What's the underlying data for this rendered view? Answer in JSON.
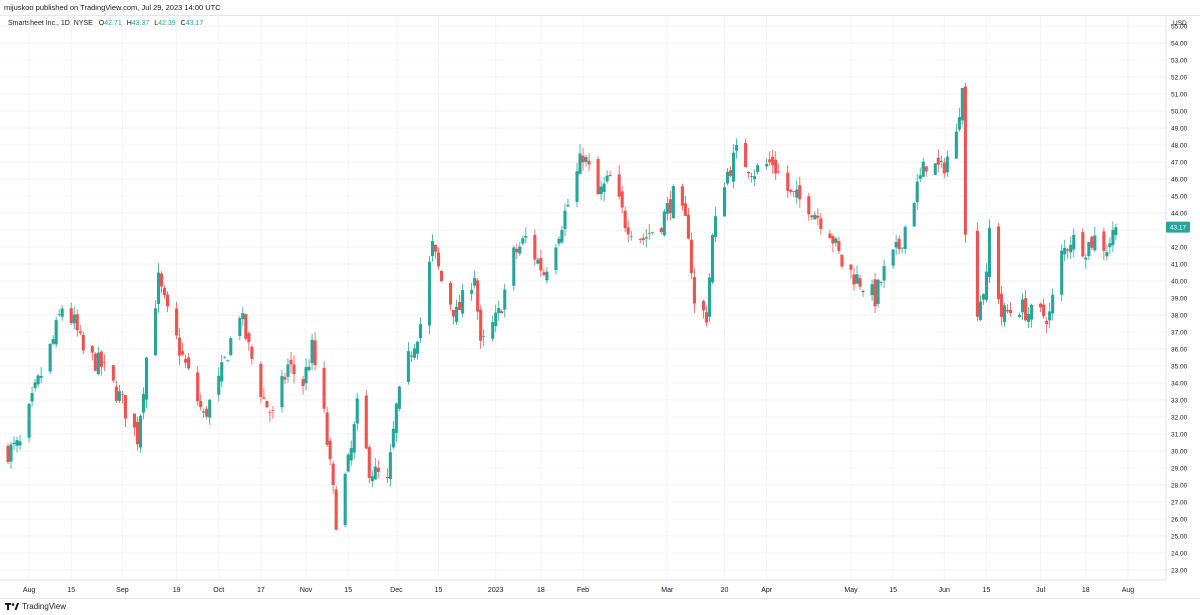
{
  "header": {
    "publisher": "mijuskoo published on TradingView.com, Jul 29, 2023 14:00 UTC"
  },
  "legend": {
    "symbol": "Smartsheet Inc., 1D, NYSE",
    "open_label": "O",
    "open": "42.71",
    "high_label": "H",
    "high": "43.37",
    "low_label": "L",
    "low": "42.39",
    "close_label": "C",
    "close": "43.17"
  },
  "footer": {
    "brand": "TradingView"
  },
  "colors": {
    "up": "#26a69a",
    "down": "#ef5350",
    "grid": "#f2f3f5",
    "text": "#131722"
  },
  "chart_data": {
    "type": "candlestick",
    "ylabel": "USD",
    "ylim": [
      22.4,
      55.6
    ],
    "y_ticks": [
      23,
      24,
      25,
      26,
      27,
      28,
      29,
      30,
      31,
      32,
      33,
      34,
      35,
      36,
      37,
      38,
      39,
      40,
      41,
      42,
      43,
      44,
      45,
      46,
      47,
      48,
      49,
      50,
      51,
      52,
      53,
      54,
      55
    ],
    "last_price": "43.17",
    "x_ticks": [
      {
        "label": "Aug",
        "date": "2022-08-01"
      },
      {
        "label": "15",
        "date": "2022-08-15"
      },
      {
        "label": "Sep",
        "date": "2022-09-01"
      },
      {
        "label": "19",
        "date": "2022-09-19"
      },
      {
        "label": "Oct",
        "date": "2022-10-03"
      },
      {
        "label": "17",
        "date": "2022-10-17"
      },
      {
        "label": "Nov",
        "date": "2022-11-01"
      },
      {
        "label": "15",
        "date": "2022-11-15"
      },
      {
        "label": "Dec",
        "date": "2022-12-01"
      },
      {
        "label": "15",
        "date": "2022-12-15"
      },
      {
        "label": "2023",
        "date": "2023-01-03"
      },
      {
        "label": "18",
        "date": "2023-01-18"
      },
      {
        "label": "Feb",
        "date": "2023-02-01"
      },
      {
        "label": "Mar",
        "date": "2023-03-01"
      },
      {
        "label": "20",
        "date": "2023-03-20"
      },
      {
        "label": "Apr",
        "date": "2023-04-03"
      },
      {
        "label": "May",
        "date": "2023-05-01"
      },
      {
        "label": "15",
        "date": "2023-05-15"
      },
      {
        "label": "Jun",
        "date": "2023-06-01"
      },
      {
        "label": "15",
        "date": "2023-06-15"
      },
      {
        "label": "Jul",
        "date": "2023-07-03"
      },
      {
        "label": "18",
        "date": "2023-07-18"
      },
      {
        "label": "Aug",
        "date": "2023-08-01"
      }
    ],
    "close_path": [
      [
        "2022-07-25",
        30.0
      ],
      [
        "2022-07-29",
        30.3
      ],
      [
        "2022-08-03",
        33.5
      ],
      [
        "2022-08-09",
        36.5
      ],
      [
        "2022-08-12",
        38.5
      ],
      [
        "2022-08-16",
        37.5
      ],
      [
        "2022-08-19",
        35.8
      ],
      [
        "2022-08-25",
        35.0
      ],
      [
        "2022-08-31",
        33.2
      ],
      [
        "2022-09-06",
        30.8
      ],
      [
        "2022-09-09",
        35.5
      ],
      [
        "2022-09-13",
        40.0
      ],
      [
        "2022-09-16",
        38.0
      ],
      [
        "2022-09-22",
        35.0
      ],
      [
        "2022-09-28",
        32.0
      ],
      [
        "2022-10-03",
        34.0
      ],
      [
        "2022-10-07",
        36.5
      ],
      [
        "2022-10-10",
        38.2
      ],
      [
        "2022-10-13",
        36.0
      ],
      [
        "2022-10-18",
        33.0
      ],
      [
        "2022-10-21",
        32.0
      ],
      [
        "2022-10-26",
        35.0
      ],
      [
        "2022-10-31",
        34.0
      ],
      [
        "2022-11-03",
        36.0
      ],
      [
        "2022-11-07",
        32.0
      ],
      [
        "2022-11-11",
        26.0
      ],
      [
        "2022-11-16",
        30.0
      ],
      [
        "2022-11-18",
        32.5
      ],
      [
        "2022-11-22",
        29.0
      ],
      [
        "2022-11-28",
        28.0
      ],
      [
        "2022-12-01",
        32.5
      ],
      [
        "2022-12-06",
        36.0
      ],
      [
        "2022-12-09",
        37.5
      ],
      [
        "2022-12-13",
        42.0
      ],
      [
        "2022-12-16",
        40.0
      ],
      [
        "2022-12-21",
        38.0
      ],
      [
        "2022-12-27",
        40.5
      ],
      [
        "2022-12-29",
        36.0
      ],
      [
        "2023-01-04",
        38.0
      ],
      [
        "2023-01-09",
        41.5
      ],
      [
        "2023-01-13",
        42.5
      ],
      [
        "2023-01-19",
        40.5
      ],
      [
        "2023-01-24",
        43.0
      ],
      [
        "2023-01-27",
        44.5
      ],
      [
        "2023-02-01",
        47.5
      ],
      [
        "2023-02-06",
        45.0
      ],
      [
        "2023-02-10",
        46.0
      ],
      [
        "2023-02-15",
        43.5
      ],
      [
        "2023-02-21",
        42.5
      ],
      [
        "2023-02-27",
        43.5
      ],
      [
        "2023-03-03",
        45.0
      ],
      [
        "2023-03-08",
        43.0
      ],
      [
        "2023-03-10",
        38.5
      ],
      [
        "2023-03-14",
        38.0
      ],
      [
        "2023-03-16",
        42.5
      ],
      [
        "2023-03-20",
        46.0
      ],
      [
        "2023-03-24",
        47.5
      ],
      [
        "2023-03-30",
        46.5
      ],
      [
        "2023-04-05",
        47.0
      ],
      [
        "2023-04-11",
        45.0
      ],
      [
        "2023-04-17",
        44.5
      ],
      [
        "2023-04-24",
        43.0
      ],
      [
        "2023-04-28",
        41.0
      ],
      [
        "2023-05-04",
        40.0
      ],
      [
        "2023-05-09",
        39.0
      ],
      [
        "2023-05-12",
        40.5
      ],
      [
        "2023-05-17",
        42.0
      ],
      [
        "2023-05-22",
        45.0
      ],
      [
        "2023-05-26",
        47.0
      ],
      [
        "2023-05-31",
        46.5
      ],
      [
        "2023-06-05",
        48.5
      ],
      [
        "2023-06-07",
        52.0
      ],
      [
        "2023-06-08",
        42.5
      ],
      [
        "2023-06-12",
        38.5
      ],
      [
        "2023-06-15",
        40.0
      ],
      [
        "2023-06-16",
        43.0
      ],
      [
        "2023-06-20",
        38.0
      ],
      [
        "2023-06-26",
        38.5
      ],
      [
        "2023-06-30",
        38.0
      ],
      [
        "2023-07-06",
        38.0
      ],
      [
        "2023-07-10",
        41.5
      ],
      [
        "2023-07-13",
        42.5
      ],
      [
        "2023-07-18",
        42.0
      ],
      [
        "2023-07-21",
        42.5
      ],
      [
        "2023-07-25",
        42.0
      ],
      [
        "2023-07-28",
        43.17
      ]
    ]
  }
}
